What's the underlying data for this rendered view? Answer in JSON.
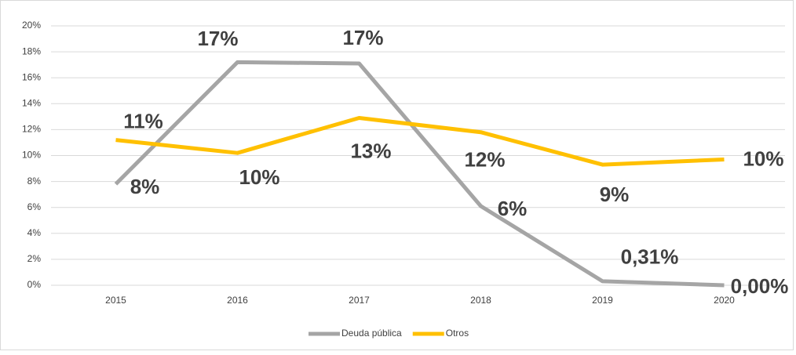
{
  "chart_data": {
    "type": "line",
    "categories": [
      "2015",
      "2016",
      "2017",
      "2018",
      "2019",
      "2020"
    ],
    "series": [
      {
        "name": "Deuda pública",
        "color": "#a5a5a5",
        "values": [
          7.8,
          17.2,
          17.1,
          6.1,
          0.31,
          0.0
        ],
        "value_labels": [
          "8%",
          "17%",
          "17%",
          "6%",
          "0,31%",
          "0,00%"
        ]
      },
      {
        "name": "Otros",
        "color": "#ffc000",
        "values": [
          11.2,
          10.2,
          12.9,
          11.8,
          9.3,
          9.7
        ],
        "value_labels": [
          "11%",
          "10%",
          "13%",
          "12%",
          "9%",
          "10%"
        ]
      }
    ],
    "ylim": [
      0,
      20
    ],
    "yticks": [
      {
        "value": 0,
        "label": "0%"
      },
      {
        "value": 2,
        "label": "2%"
      },
      {
        "value": 4,
        "label": "4%"
      },
      {
        "value": 6,
        "label": "6%"
      },
      {
        "value": 8,
        "label": "8%"
      },
      {
        "value": 10,
        "label": "10%"
      },
      {
        "value": 12,
        "label": "12%"
      },
      {
        "value": 14,
        "label": "14%"
      },
      {
        "value": 16,
        "label": "16%"
      },
      {
        "value": 18,
        "label": "18%"
      },
      {
        "value": 20,
        "label": "20%"
      }
    ],
    "grid": true,
    "legend": "bottom"
  }
}
